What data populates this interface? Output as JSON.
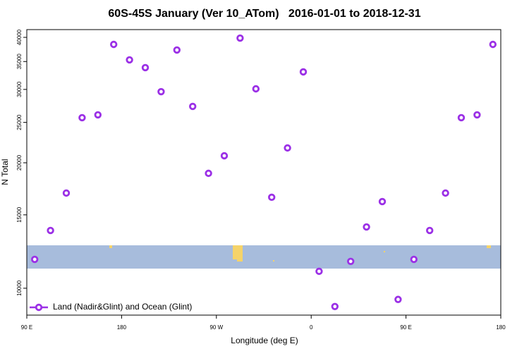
{
  "chart_data": {
    "type": "scatter",
    "title": "60S-45S January (Ver 10_ATom)   2016-01-01 to 2018-12-31",
    "x_label": "Longitude (deg E)",
    "y_label": "N Total",
    "xlim": [
      90,
      540
    ],
    "xticks": [
      {
        "value": 90,
        "label": "90 E"
      },
      {
        "value": 180,
        "label": "180"
      },
      {
        "value": 270,
        "label": "90 W"
      },
      {
        "value": 360,
        "label": "0"
      },
      {
        "value": 450,
        "label": "90 E"
      },
      {
        "value": 540,
        "label": "180"
      }
    ],
    "ylim": [
      8620,
      41750
    ],
    "yticks": [
      10000,
      15000,
      20000,
      25000,
      30000,
      35000,
      40000
    ],
    "y_log": true,
    "legend": "bottom-left",
    "series": [
      {
        "name": "Land (Nadir&Glint) and Ocean (Glint)",
        "color": "#9b30e6",
        "x": [
          97.5,
          112.5,
          127.5,
          142.5,
          157.5,
          172.5,
          187.5,
          202.5,
          217.5,
          232.5,
          247.5,
          262.5,
          277.5,
          292.5,
          307.5,
          322.5,
          337.5,
          352.5,
          367.5,
          382.5,
          397.5,
          412.5,
          427.5,
          442.5,
          457.5,
          472.5,
          487.5,
          502.5,
          517.5,
          532.5
        ],
        "values": [
          11730,
          13760,
          16920,
          25660,
          26070,
          38470,
          35320,
          33840,
          29630,
          37300,
          27310,
          18870,
          20790,
          39840,
          30100,
          16530,
          21710,
          33050,
          10980,
          9040,
          11600,
          14030,
          16140,
          9400,
          11730,
          13760,
          16920,
          25660,
          26070,
          38470
        ]
      }
    ]
  }
}
